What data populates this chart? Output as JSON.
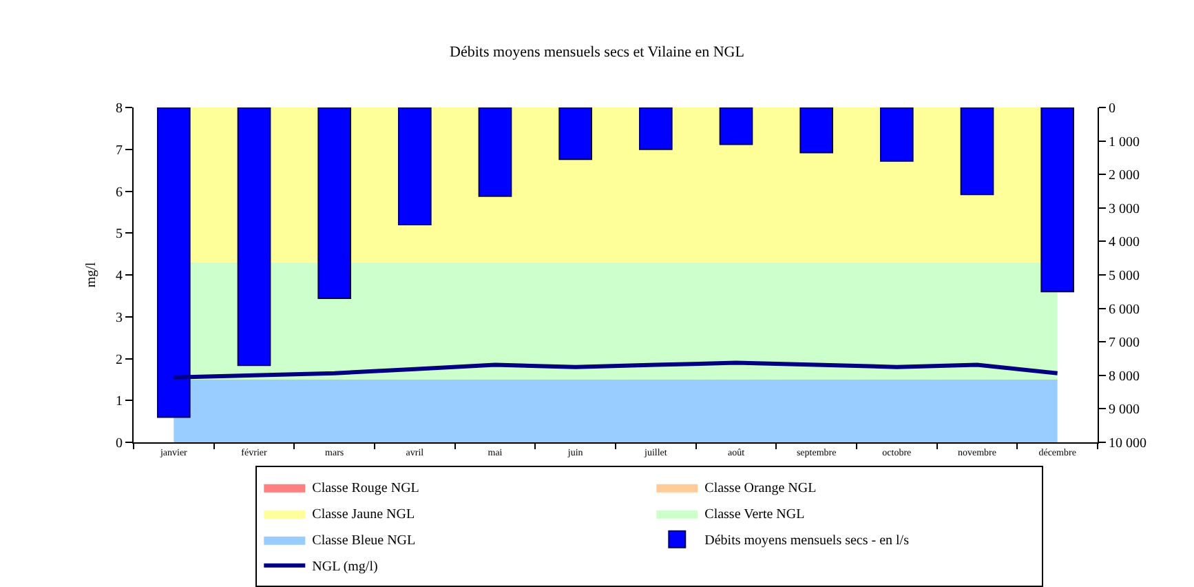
{
  "chart_data": {
    "type": "area",
    "title": "Débits moyens mensuels secs et Vilaine en NGL",
    "ylabel": "mg/l",
    "categories": [
      "janvier",
      "février",
      "mars",
      "avril",
      "mai",
      "juin",
      "juillet",
      "août",
      "septembre",
      "octobre",
      "novembre",
      "décembre"
    ],
    "stacked": true,
    "ylim": [
      0,
      8
    ],
    "yticks": [
      0,
      1,
      2,
      3,
      4,
      5,
      6,
      7,
      8
    ],
    "y2lim": [
      10000,
      0
    ],
    "y2ticks": [
      {
        "value": 0,
        "label": "0"
      },
      {
        "value": 1000,
        "label": "1 000"
      },
      {
        "value": 2000,
        "label": "2 000"
      },
      {
        "value": 3000,
        "label": "3 000"
      },
      {
        "value": 4000,
        "label": "4 000"
      },
      {
        "value": 5000,
        "label": "5 000"
      },
      {
        "value": 6000,
        "label": "6 000"
      },
      {
        "value": 7000,
        "label": "7 000"
      },
      {
        "value": 8000,
        "label": "8 000"
      },
      {
        "value": 9000,
        "label": "9 000"
      },
      {
        "value": 10000,
        "label": "10 000"
      }
    ],
    "legend": "bottom",
    "marker": "none",
    "series": [
      {
        "name": "Classe Bleue NGL",
        "color": "#99ccff",
        "values": [
          1.5,
          1.5,
          1.5,
          1.5,
          1.5,
          1.5,
          1.5,
          1.5,
          1.5,
          1.5,
          1.5,
          1.5
        ]
      },
      {
        "name": "Classe Verte NGL",
        "color": "#ccffcc",
        "values": [
          2.8,
          2.8,
          2.8,
          2.8,
          2.8,
          2.8,
          2.8,
          2.8,
          2.8,
          2.8,
          2.8,
          2.8
        ]
      },
      {
        "name": "Classe Jaune NGL",
        "color": "#ffff99",
        "values": [
          3.7,
          3.7,
          3.7,
          3.7,
          3.7,
          3.7,
          3.7,
          3.7,
          3.7,
          3.7,
          3.7,
          3.7
        ]
      },
      {
        "name": "Classe Orange NGL",
        "color": "#ffcc99",
        "values": [
          null,
          null,
          null,
          null,
          null,
          null,
          null,
          null,
          null,
          null,
          null,
          null
        ]
      },
      {
        "name": "Classe Rouge NGL",
        "color": "#ff8080",
        "values": [
          null,
          null,
          null,
          null,
          null,
          null,
          null,
          null,
          null,
          null,
          null,
          null
        ]
      },
      {
        "name": "Débits moyens mensuels secs - en l/s",
        "type": "bar",
        "axis": "y2",
        "color": "#0000ff",
        "values": [
          9250,
          7700,
          5700,
          3500,
          2650,
          1550,
          1250,
          1100,
          1350,
          1600,
          2600,
          5500
        ]
      },
      {
        "name": "NGL (mg/l)",
        "type": "line",
        "color": "#000080",
        "values": [
          1.55,
          1.6,
          1.65,
          1.75,
          1.85,
          1.8,
          1.85,
          1.9,
          1.85,
          1.8,
          1.85,
          1.65
        ]
      }
    ]
  }
}
